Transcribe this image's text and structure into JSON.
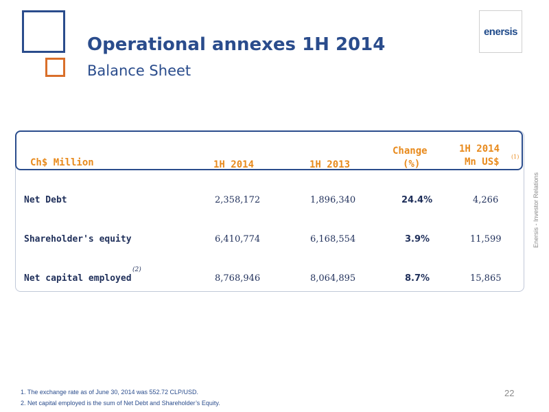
{
  "header": {
    "title": "Operational annexes 1H 2014",
    "subtitle": "Balance Sheet",
    "logo_text": "enersis"
  },
  "side_label": "Enersis - Investor Relations",
  "table": {
    "columns": {
      "label": "Ch$ Million",
      "c1": "1H 2014",
      "c2": "1H 2013",
      "c3_line1": "Change",
      "c3_line2": "(%)",
      "c4_line1": "1H 2014",
      "c4_line2": "Mn US$",
      "c4_sup": "(1)"
    },
    "rows": [
      {
        "label": "Net Debt",
        "sup": "",
        "c1": "2,358,172",
        "c2": "1,896,340",
        "c3": "24.4%",
        "c4": "4,266"
      },
      {
        "label": "Shareholder's equity",
        "sup": "",
        "c1": "6,410,774",
        "c2": "6,168,554",
        "c3": "3.9%",
        "c4": "11,599"
      },
      {
        "label": "Net capital employed",
        "sup": "(2)",
        "c1": "8,768,946",
        "c2": "8,064,895",
        "c3": "8.7%",
        "c4": "15,865"
      }
    ]
  },
  "footnotes": [
    "1. The exchange rate as of June 30, 2014 was 552.72 CLP/USD.",
    "2. Net capital employed is the sum of Net Debt and Shareholder’s Equity."
  ],
  "page_number": "22",
  "colors": {
    "brand_blue": "#2a4c8c",
    "accent_orange": "#e88a1c",
    "square_orange": "#d96f2a"
  }
}
